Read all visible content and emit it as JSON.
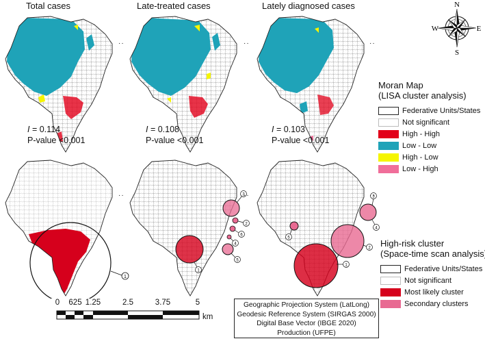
{
  "titles": {
    "total": "Total cases",
    "late_treated": "Late-treated cases",
    "lately_diagnosed": "Lately diagnosed cases"
  },
  "stats": [
    {
      "i_label": "I",
      "i_value": " = 0.114",
      "p_value": "P-value <0.001"
    },
    {
      "i_label": "I",
      "i_value": " = 0.108",
      "p_value": "P-value <0.001"
    },
    {
      "i_label": "I",
      "i_value": " = 0.103",
      "p_value": "P-value <0.001"
    }
  ],
  "compass": {
    "n": "N",
    "s": "S",
    "e": "E",
    "w": "W"
  },
  "moran_legend": {
    "title_line1": "Moran Map",
    "title_line2": "(LISA cluster analysis)",
    "items": [
      {
        "label": "Federative Units/States",
        "color": "#ffffff"
      },
      {
        "label": "Not significant",
        "color": "#ffffff"
      },
      {
        "label": "High - High",
        "color": "#e2001a"
      },
      {
        "label": "Low - Low",
        "color": "#1fa3b8"
      },
      {
        "label": "High - Low",
        "color": "#f5f500"
      },
      {
        "label": "Low - High",
        "color": "#f06e9a"
      }
    ]
  },
  "scan_legend": {
    "title_line1": "High-risk cluster",
    "title_line2": "(Space-time scan analysis)",
    "items": [
      {
        "label": "Federative Units/States",
        "color": "#ffffff"
      },
      {
        "label": "Not significant",
        "color": "#ffffff"
      },
      {
        "label": "Most likely cluster",
        "color": "#d6001c"
      },
      {
        "label": "Secondary clusters",
        "color": "#e86a92"
      }
    ]
  },
  "clusters": {
    "total": [
      "1"
    ],
    "late_treated": [
      "1",
      "2",
      "3",
      "4",
      "5",
      "6"
    ],
    "lately_diagnosed": [
      "1",
      "2",
      "3",
      "4",
      "5"
    ]
  },
  "scale": {
    "ticks": [
      "0",
      "625",
      "1.25",
      "2.5",
      "3.75",
      "5"
    ],
    "unit": "km"
  },
  "info_box": [
    "Geographic Projection System (LatLong)",
    "Geodesic Reference System (SIRGAS 2000)",
    "Digital Base Vector (IBGE 2020)",
    "Production (UFPE)"
  ],
  "colors": {
    "high_high": "#e2001a",
    "low_low": "#1fa3b8",
    "high_low": "#f5f500",
    "low_high": "#f06e9a",
    "most_likely": "#d6001c",
    "secondary": "#e86a92"
  }
}
